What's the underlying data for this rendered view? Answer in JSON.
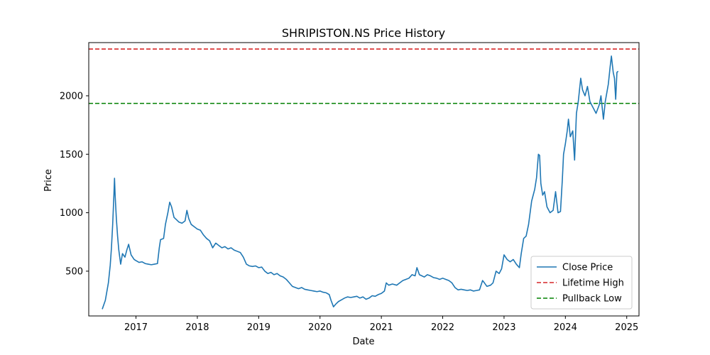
{
  "chart_data": {
    "type": "line",
    "title": "SHRIPISTON.NS Price History",
    "xlabel": "Date",
    "ylabel": "Price",
    "x_range": [
      2016.23,
      2025.2
    ],
    "ylim": [
      117,
      2455
    ],
    "x_ticks": [
      2017,
      2018,
      2019,
      2020,
      2021,
      2022,
      2023,
      2024,
      2025
    ],
    "y_ticks": [
      500,
      1000,
      1500,
      2000
    ],
    "grid": false,
    "legend_position": "lower-right",
    "series": [
      {
        "name": "Close Price",
        "color": "#1f77b4",
        "points": [
          [
            2016.45,
            175
          ],
          [
            2016.5,
            250
          ],
          [
            2016.55,
            400
          ],
          [
            2016.58,
            550
          ],
          [
            2016.6,
            700
          ],
          [
            2016.62,
            900
          ],
          [
            2016.64,
            1150
          ],
          [
            2016.65,
            1295
          ],
          [
            2016.66,
            1150
          ],
          [
            2016.68,
            950
          ],
          [
            2016.7,
            800
          ],
          [
            2016.72,
            680
          ],
          [
            2016.75,
            560
          ],
          [
            2016.78,
            650
          ],
          [
            2016.82,
            620
          ],
          [
            2016.85,
            680
          ],
          [
            2016.88,
            730
          ],
          [
            2016.92,
            640
          ],
          [
            2016.97,
            600
          ],
          [
            2017.0,
            590
          ],
          [
            2017.05,
            575
          ],
          [
            2017.1,
            580
          ],
          [
            2017.15,
            565
          ],
          [
            2017.2,
            560
          ],
          [
            2017.25,
            555
          ],
          [
            2017.3,
            560
          ],
          [
            2017.35,
            565
          ],
          [
            2017.38,
            700
          ],
          [
            2017.4,
            770
          ],
          [
            2017.45,
            780
          ],
          [
            2017.48,
            900
          ],
          [
            2017.52,
            1000
          ],
          [
            2017.55,
            1090
          ],
          [
            2017.58,
            1050
          ],
          [
            2017.62,
            960
          ],
          [
            2017.66,
            940
          ],
          [
            2017.7,
            920
          ],
          [
            2017.75,
            910
          ],
          [
            2017.8,
            930
          ],
          [
            2017.83,
            1020
          ],
          [
            2017.86,
            950
          ],
          [
            2017.9,
            900
          ],
          [
            2017.95,
            880
          ],
          [
            2018.0,
            860
          ],
          [
            2018.05,
            850
          ],
          [
            2018.1,
            810
          ],
          [
            2018.15,
            780
          ],
          [
            2018.2,
            760
          ],
          [
            2018.25,
            700
          ],
          [
            2018.3,
            740
          ],
          [
            2018.35,
            720
          ],
          [
            2018.4,
            700
          ],
          [
            2018.45,
            710
          ],
          [
            2018.5,
            690
          ],
          [
            2018.55,
            700
          ],
          [
            2018.6,
            680
          ],
          [
            2018.65,
            670
          ],
          [
            2018.7,
            660
          ],
          [
            2018.75,
            620
          ],
          [
            2018.8,
            560
          ],
          [
            2018.85,
            545
          ],
          [
            2018.9,
            540
          ],
          [
            2018.95,
            545
          ],
          [
            2019.0,
            530
          ],
          [
            2019.05,
            535
          ],
          [
            2019.1,
            500
          ],
          [
            2019.15,
            480
          ],
          [
            2019.2,
            490
          ],
          [
            2019.25,
            470
          ],
          [
            2019.3,
            480
          ],
          [
            2019.35,
            460
          ],
          [
            2019.4,
            450
          ],
          [
            2019.45,
            430
          ],
          [
            2019.5,
            400
          ],
          [
            2019.55,
            370
          ],
          [
            2019.6,
            360
          ],
          [
            2019.65,
            350
          ],
          [
            2019.7,
            360
          ],
          [
            2019.75,
            345
          ],
          [
            2019.8,
            340
          ],
          [
            2019.85,
            335
          ],
          [
            2019.9,
            330
          ],
          [
            2019.95,
            325
          ],
          [
            2020.0,
            330
          ],
          [
            2020.05,
            320
          ],
          [
            2020.1,
            315
          ],
          [
            2020.15,
            300
          ],
          [
            2020.18,
            250
          ],
          [
            2020.22,
            195
          ],
          [
            2020.26,
            220
          ],
          [
            2020.3,
            240
          ],
          [
            2020.35,
            255
          ],
          [
            2020.4,
            270
          ],
          [
            2020.45,
            280
          ],
          [
            2020.5,
            275
          ],
          [
            2020.55,
            280
          ],
          [
            2020.6,
            285
          ],
          [
            2020.65,
            270
          ],
          [
            2020.7,
            280
          ],
          [
            2020.75,
            260
          ],
          [
            2020.8,
            270
          ],
          [
            2020.85,
            290
          ],
          [
            2020.9,
            285
          ],
          [
            2020.95,
            300
          ],
          [
            2021.0,
            310
          ],
          [
            2021.05,
            330
          ],
          [
            2021.08,
            400
          ],
          [
            2021.12,
            380
          ],
          [
            2021.18,
            390
          ],
          [
            2021.25,
            380
          ],
          [
            2021.3,
            400
          ],
          [
            2021.35,
            420
          ],
          [
            2021.4,
            430
          ],
          [
            2021.45,
            440
          ],
          [
            2021.5,
            470
          ],
          [
            2021.55,
            460
          ],
          [
            2021.58,
            530
          ],
          [
            2021.62,
            470
          ],
          [
            2021.66,
            460
          ],
          [
            2021.7,
            450
          ],
          [
            2021.75,
            470
          ],
          [
            2021.8,
            460
          ],
          [
            2021.85,
            445
          ],
          [
            2021.9,
            440
          ],
          [
            2021.95,
            430
          ],
          [
            2022.0,
            440
          ],
          [
            2022.05,
            430
          ],
          [
            2022.1,
            420
          ],
          [
            2022.15,
            400
          ],
          [
            2022.2,
            360
          ],
          [
            2022.25,
            340
          ],
          [
            2022.3,
            345
          ],
          [
            2022.35,
            340
          ],
          [
            2022.4,
            335
          ],
          [
            2022.45,
            340
          ],
          [
            2022.5,
            330
          ],
          [
            2022.55,
            335
          ],
          [
            2022.6,
            340
          ],
          [
            2022.65,
            420
          ],
          [
            2022.68,
            400
          ],
          [
            2022.72,
            370
          ],
          [
            2022.78,
            380
          ],
          [
            2022.82,
            400
          ],
          [
            2022.87,
            500
          ],
          [
            2022.92,
            480
          ],
          [
            2022.96,
            520
          ],
          [
            2023.0,
            640
          ],
          [
            2023.05,
            600
          ],
          [
            2023.1,
            580
          ],
          [
            2023.15,
            600
          ],
          [
            2023.2,
            560
          ],
          [
            2023.25,
            530
          ],
          [
            2023.28,
            650
          ],
          [
            2023.32,
            780
          ],
          [
            2023.36,
            800
          ],
          [
            2023.4,
            900
          ],
          [
            2023.45,
            1100
          ],
          [
            2023.5,
            1200
          ],
          [
            2023.53,
            1300
          ],
          [
            2023.56,
            1500
          ],
          [
            2023.58,
            1490
          ],
          [
            2023.6,
            1250
          ],
          [
            2023.63,
            1150
          ],
          [
            2023.66,
            1180
          ],
          [
            2023.7,
            1050
          ],
          [
            2023.75,
            1000
          ],
          [
            2023.8,
            1020
          ],
          [
            2023.84,
            1180
          ],
          [
            2023.88,
            1000
          ],
          [
            2023.92,
            1010
          ],
          [
            2023.95,
            1280
          ],
          [
            2023.97,
            1500
          ],
          [
            2024.0,
            1590
          ],
          [
            2024.03,
            1700
          ],
          [
            2024.05,
            1800
          ],
          [
            2024.08,
            1650
          ],
          [
            2024.12,
            1700
          ],
          [
            2024.15,
            1450
          ],
          [
            2024.18,
            1850
          ],
          [
            2024.21,
            1950
          ],
          [
            2024.25,
            2150
          ],
          [
            2024.28,
            2050
          ],
          [
            2024.32,
            2000
          ],
          [
            2024.36,
            2080
          ],
          [
            2024.4,
            1950
          ],
          [
            2024.45,
            1900
          ],
          [
            2024.5,
            1850
          ],
          [
            2024.55,
            1920
          ],
          [
            2024.58,
            2000
          ],
          [
            2024.62,
            1800
          ],
          [
            2024.65,
            1950
          ],
          [
            2024.7,
            2100
          ],
          [
            2024.73,
            2250
          ],
          [
            2024.75,
            2340
          ],
          [
            2024.78,
            2200
          ],
          [
            2024.8,
            2150
          ],
          [
            2024.82,
            1970
          ],
          [
            2024.84,
            2200
          ],
          [
            2024.86,
            2210
          ]
        ]
      }
    ],
    "reference_lines": [
      {
        "name": "Lifetime High",
        "y": 2400,
        "color": "#d62728",
        "style": "dashed"
      },
      {
        "name": "Pullback Low",
        "y": 1935,
        "color": "#008000",
        "style": "dashed"
      }
    ]
  }
}
